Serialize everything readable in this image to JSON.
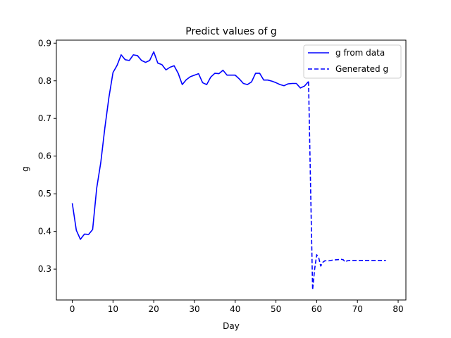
{
  "chart_data": {
    "type": "line",
    "title": "Predict values of g",
    "xlabel": "Day",
    "ylabel": "g",
    "xlim": [
      -3.9,
      81.9
    ],
    "ylim": [
      0.218,
      0.908
    ],
    "xticks": [
      0,
      10,
      20,
      30,
      40,
      50,
      60,
      70,
      80
    ],
    "yticks": [
      0.3,
      0.4,
      0.5,
      0.6,
      0.7,
      0.8,
      0.9
    ],
    "grid": false,
    "legend_position": "top-right",
    "series": [
      {
        "name": "g from data",
        "color": "#0000ff",
        "style": "solid",
        "x": [
          0,
          1,
          2,
          3,
          4,
          5,
          6,
          7,
          8,
          9,
          10,
          11,
          12,
          13,
          14,
          15,
          16,
          17,
          18,
          19,
          20,
          21,
          22,
          23,
          24,
          25,
          26,
          27,
          28,
          29,
          30,
          31,
          32,
          33,
          34,
          35,
          36,
          37,
          38,
          39,
          40,
          41,
          42,
          43,
          44,
          45,
          46,
          47,
          48,
          49,
          50,
          51,
          52,
          53,
          54,
          55,
          56,
          57,
          58
        ],
        "y": [
          0.475,
          0.403,
          0.379,
          0.393,
          0.392,
          0.405,
          0.515,
          0.583,
          0.675,
          0.756,
          0.822,
          0.841,
          0.869,
          0.856,
          0.854,
          0.869,
          0.867,
          0.854,
          0.849,
          0.854,
          0.877,
          0.847,
          0.843,
          0.829,
          0.836,
          0.84,
          0.82,
          0.79,
          0.803,
          0.811,
          0.815,
          0.819,
          0.795,
          0.79,
          0.81,
          0.82,
          0.819,
          0.828,
          0.815,
          0.815,
          0.815,
          0.805,
          0.793,
          0.79,
          0.797,
          0.82,
          0.82,
          0.802,
          0.802,
          0.799,
          0.795,
          0.79,
          0.787,
          0.792,
          0.793,
          0.793,
          0.781,
          0.786,
          0.798
        ]
      },
      {
        "name": "Generated g",
        "color": "#0000ff",
        "style": "dashed",
        "x": [
          58,
          58.5,
          59,
          59.5,
          60,
          60.5,
          61,
          61.5,
          62,
          63,
          64,
          65,
          66,
          66.5,
          67,
          67.5,
          68,
          69,
          70,
          71,
          72,
          73,
          74,
          75,
          76,
          77
        ],
        "y": [
          0.798,
          0.52,
          0.245,
          0.3,
          0.338,
          0.33,
          0.308,
          0.318,
          0.322,
          0.322,
          0.324,
          0.325,
          0.326,
          0.325,
          0.319,
          0.322,
          0.323,
          0.323,
          0.323,
          0.323,
          0.323,
          0.323,
          0.323,
          0.323,
          0.323,
          0.323
        ]
      }
    ]
  }
}
